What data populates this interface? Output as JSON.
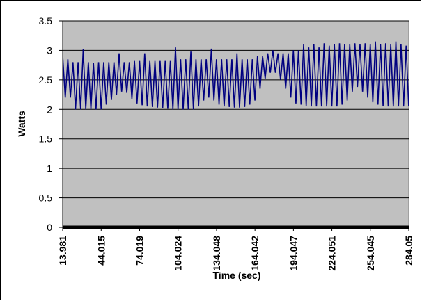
{
  "chart_data": {
    "type": "line",
    "x_label": "Time (sec)",
    "y_label": "Watts",
    "x": [
      14,
      16,
      18,
      20,
      22,
      24,
      26,
      28,
      30,
      32,
      34,
      36,
      38,
      40,
      42,
      44,
      46,
      48,
      50,
      52,
      54,
      56,
      58,
      60,
      62,
      64,
      66,
      68,
      70,
      72,
      74,
      76,
      78,
      80,
      82,
      84,
      86,
      88,
      90,
      92,
      94,
      96,
      98,
      100,
      102,
      104,
      106,
      108,
      110,
      112,
      114,
      116,
      118,
      120,
      122,
      124,
      126,
      128,
      130,
      132,
      134,
      136,
      138,
      140,
      142,
      144,
      146,
      148,
      150,
      152,
      154,
      156,
      158,
      160,
      162,
      164,
      166,
      168,
      170,
      172,
      174,
      176,
      178,
      180,
      182,
      184,
      186,
      188,
      190,
      192,
      194,
      196,
      198,
      200,
      202,
      204,
      206,
      208,
      210,
      212,
      214,
      216,
      218,
      220,
      222,
      224,
      226,
      228,
      230,
      232,
      234,
      236,
      238,
      240,
      242,
      244,
      246,
      248,
      250,
      252,
      254,
      256,
      258,
      260,
      262,
      264,
      266,
      268,
      270,
      272,
      274,
      276,
      278,
      280,
      282,
      284
    ],
    "series": [
      {
        "color": "#000080",
        "values": [
          2.9,
          2.2,
          2.85,
          2.2,
          2.8,
          2.0,
          2.8,
          2.0,
          3.02,
          2.0,
          2.8,
          2.0,
          2.78,
          2.0,
          2.8,
          2.0,
          2.8,
          2.08,
          2.8,
          2.16,
          2.8,
          2.25,
          2.95,
          2.3,
          2.8,
          2.28,
          2.8,
          2.18,
          2.82,
          2.1,
          2.82,
          2.07,
          2.95,
          2.05,
          2.82,
          2.04,
          2.82,
          2.03,
          2.82,
          2.02,
          2.82,
          2.01,
          2.82,
          2.0,
          3.05,
          2.0,
          2.85,
          2.0,
          2.85,
          2.0,
          2.98,
          2.0,
          2.85,
          2.05,
          2.85,
          2.15,
          2.85,
          2.2,
          3.03,
          2.15,
          2.85,
          2.08,
          2.85,
          2.05,
          2.85,
          2.04,
          2.85,
          2.03,
          2.95,
          2.03,
          2.85,
          2.04,
          2.85,
          2.08,
          2.85,
          2.15,
          2.9,
          2.35,
          2.9,
          2.52,
          2.95,
          2.62,
          3.0,
          2.62,
          2.95,
          2.5,
          2.95,
          2.35,
          2.95,
          2.2,
          3.0,
          2.1,
          3.0,
          2.08,
          3.1,
          2.06,
          3.05,
          2.05,
          3.1,
          2.05,
          3.05,
          2.05,
          3.12,
          2.05,
          3.08,
          2.05,
          3.1,
          2.05,
          3.12,
          2.08,
          3.1,
          2.15,
          3.1,
          2.3,
          3.12,
          2.38,
          3.1,
          2.3,
          3.12,
          2.2,
          3.1,
          2.12,
          3.15,
          2.08,
          3.1,
          2.06,
          3.12,
          2.05,
          3.1,
          2.05,
          3.15,
          2.05,
          3.1,
          2.05,
          3.08,
          2.05
        ]
      }
    ],
    "xlim": [
      13.981,
      284.05
    ],
    "xticks": [
      13.981,
      44.015,
      74.019,
      104.024,
      134.048,
      164.042,
      194.047,
      224.051,
      254.045,
      284.05
    ],
    "ylim": [
      0,
      3.5
    ],
    "yticks": [
      0,
      0.5,
      1,
      1.5,
      2,
      2.5,
      3,
      3.5
    ],
    "grid": true,
    "plot_background": "#c0c0c0"
  }
}
